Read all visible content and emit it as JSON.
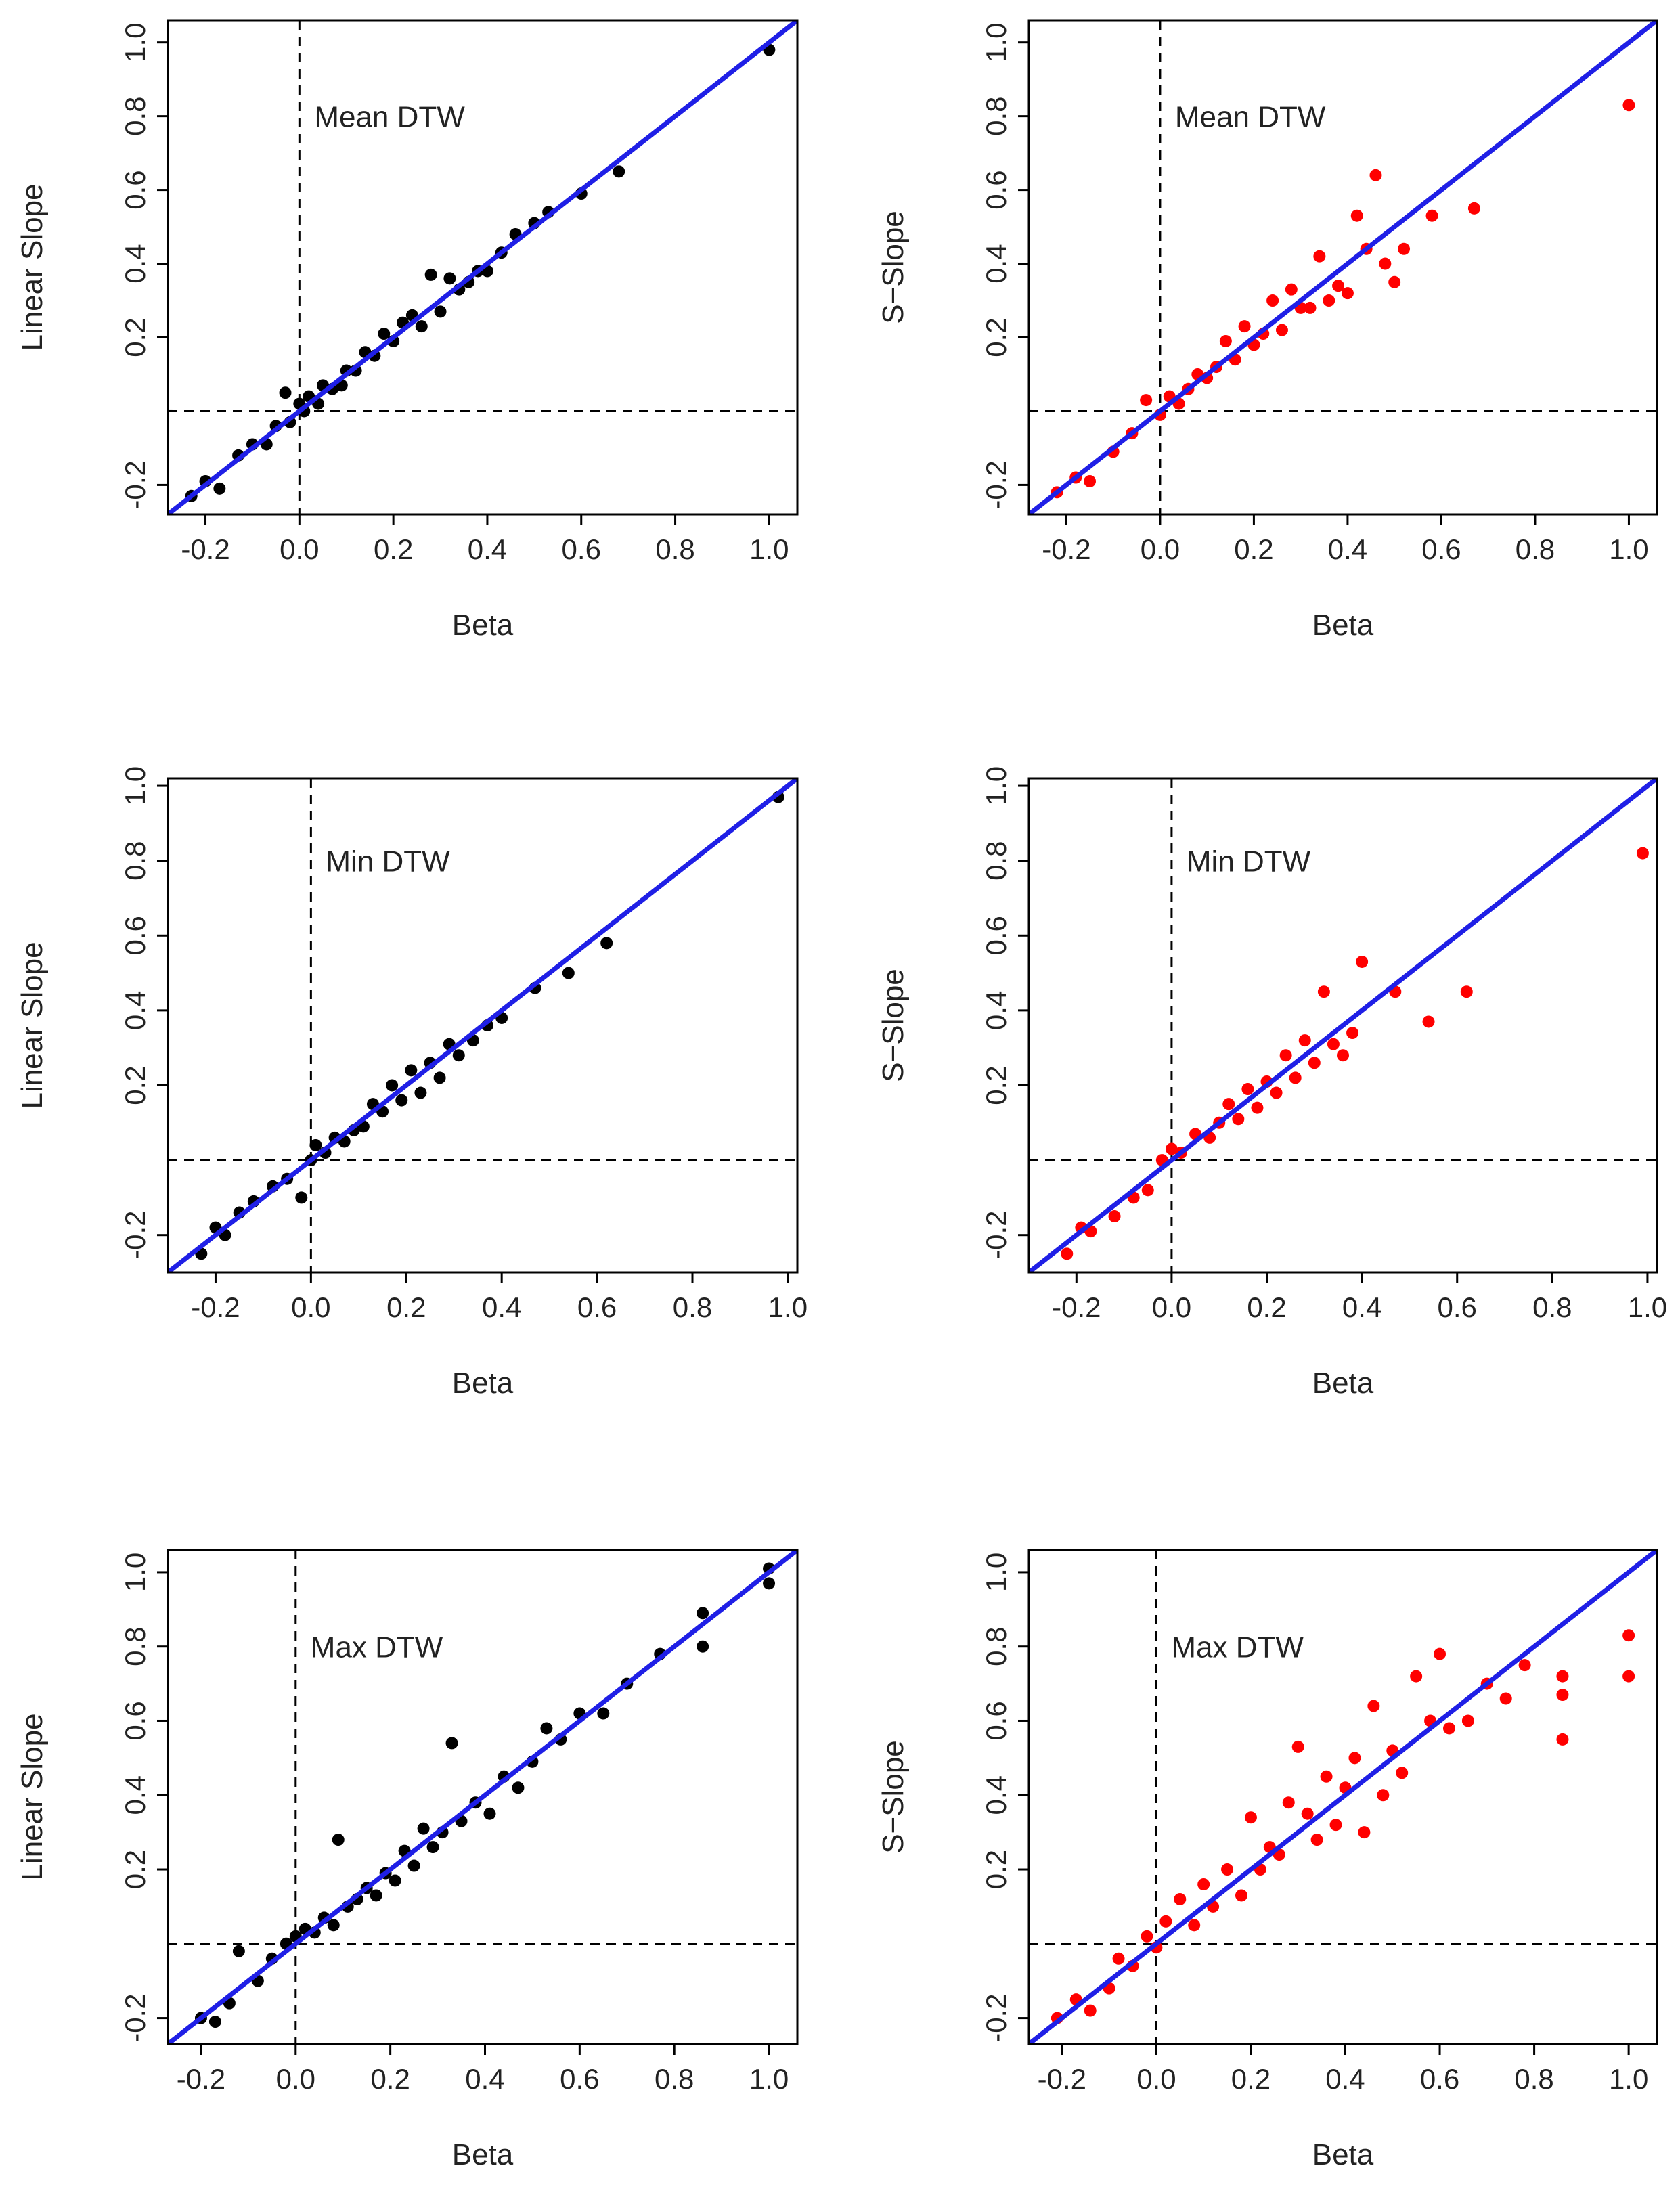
{
  "colors": {
    "identity_line": "#1f1fe6",
    "axis": "#000000",
    "reference_line": "#000000",
    "linear_points": "#000000",
    "s_slope_points": "#ff0000"
  },
  "chart_data": [
    {
      "id": "mean-linear",
      "type": "scatter",
      "annotation": "Mean DTW",
      "xlabel": "Beta",
      "ylabel": "Linear Slope",
      "xlim": [
        -0.28,
        1.06
      ],
      "ylim": [
        -0.28,
        1.06
      ],
      "xticks": [
        "-0.2",
        "0.0",
        "0.2",
        "0.4",
        "0.6",
        "0.8",
        "1.0"
      ],
      "yticks": [
        "-0.2",
        "0.2",
        "0.4",
        "0.6",
        "0.8",
        "1.0"
      ],
      "reference_lines": {
        "x": 0.0,
        "y": 0.0
      },
      "identity_line": true,
      "point_color": "#000000",
      "series": [
        {
          "name": "Linear Slope",
          "x": [
            -0.23,
            -0.2,
            -0.17,
            -0.13,
            -0.1,
            -0.07,
            -0.05,
            -0.03,
            -0.02,
            0.0,
            0.01,
            0.02,
            0.04,
            0.05,
            0.07,
            0.09,
            0.1,
            0.12,
            0.14,
            0.16,
            0.18,
            0.2,
            0.22,
            0.24,
            0.26,
            0.28,
            0.3,
            0.32,
            0.34,
            0.36,
            0.38,
            0.4,
            0.43,
            0.46,
            0.5,
            0.53,
            0.6,
            0.68,
            1.0
          ],
          "y": [
            -0.23,
            -0.19,
            -0.21,
            -0.12,
            -0.09,
            -0.09,
            -0.04,
            0.05,
            -0.03,
            0.02,
            0.0,
            0.04,
            0.02,
            0.07,
            0.06,
            0.07,
            0.11,
            0.11,
            0.16,
            0.15,
            0.21,
            0.19,
            0.24,
            0.26,
            0.23,
            0.37,
            0.27,
            0.36,
            0.33,
            0.35,
            0.38,
            0.38,
            0.43,
            0.48,
            0.51,
            0.54,
            0.59,
            0.65,
            0.98
          ]
        }
      ]
    },
    {
      "id": "mean-s",
      "type": "scatter",
      "annotation": "Mean DTW",
      "xlabel": "Beta",
      "ylabel": "S−Slope",
      "xlim": [
        -0.28,
        1.06
      ],
      "ylim": [
        -0.28,
        1.06
      ],
      "xticks": [
        "-0.2",
        "0.0",
        "0.2",
        "0.4",
        "0.6",
        "0.8",
        "1.0"
      ],
      "yticks": [
        "-0.2",
        "0.2",
        "0.4",
        "0.6",
        "0.8",
        "1.0"
      ],
      "reference_lines": {
        "x": 0.0,
        "y": 0.0
      },
      "identity_line": true,
      "point_color": "#ff0000",
      "series": [
        {
          "name": "S−Slope",
          "x": [
            -0.22,
            -0.18,
            -0.15,
            -0.1,
            -0.06,
            -0.03,
            0.0,
            0.02,
            0.04,
            0.06,
            0.08,
            0.1,
            0.12,
            0.14,
            0.16,
            0.18,
            0.2,
            0.22,
            0.24,
            0.26,
            0.28,
            0.3,
            0.32,
            0.34,
            0.36,
            0.38,
            0.4,
            0.42,
            0.44,
            0.46,
            0.48,
            0.5,
            0.52,
            0.58,
            0.67,
            1.0
          ],
          "y": [
            -0.22,
            -0.18,
            -0.19,
            -0.11,
            -0.06,
            0.03,
            -0.01,
            0.04,
            0.02,
            0.06,
            0.1,
            0.09,
            0.12,
            0.19,
            0.14,
            0.23,
            0.18,
            0.21,
            0.3,
            0.22,
            0.33,
            0.28,
            0.28,
            0.42,
            0.3,
            0.34,
            0.32,
            0.53,
            0.44,
            0.64,
            0.4,
            0.35,
            0.44,
            0.53,
            0.55,
            0.83
          ]
        }
      ]
    },
    {
      "id": "min-linear",
      "type": "scatter",
      "annotation": "Min DTW",
      "xlabel": "Beta",
      "ylabel": "Linear Slope",
      "xlim": [
        -0.3,
        1.02
      ],
      "ylim": [
        -0.3,
        1.02
      ],
      "xticks": [
        "-0.2",
        "0.0",
        "0.2",
        "0.4",
        "0.6",
        "0.8",
        "1.0"
      ],
      "yticks": [
        "-0.2",
        "0.2",
        "0.4",
        "0.6",
        "0.8",
        "1.0"
      ],
      "reference_lines": {
        "x": 0.0,
        "y": 0.0
      },
      "identity_line": true,
      "point_color": "#000000",
      "series": [
        {
          "name": "Linear Slope",
          "x": [
            -0.23,
            -0.2,
            -0.18,
            -0.15,
            -0.12,
            -0.08,
            -0.05,
            -0.02,
            0.0,
            0.01,
            0.03,
            0.05,
            0.07,
            0.09,
            0.11,
            0.13,
            0.15,
            0.17,
            0.19,
            0.21,
            0.23,
            0.25,
            0.27,
            0.29,
            0.31,
            0.34,
            0.37,
            0.4,
            0.47,
            0.54,
            0.62,
            0.98
          ],
          "y": [
            -0.25,
            -0.18,
            -0.2,
            -0.14,
            -0.11,
            -0.07,
            -0.05,
            -0.1,
            0.0,
            0.04,
            0.02,
            0.06,
            0.05,
            0.08,
            0.09,
            0.15,
            0.13,
            0.2,
            0.16,
            0.24,
            0.18,
            0.26,
            0.22,
            0.31,
            0.28,
            0.32,
            0.36,
            0.38,
            0.46,
            0.5,
            0.58,
            0.97
          ]
        }
      ]
    },
    {
      "id": "min-s",
      "type": "scatter",
      "annotation": "Min DTW",
      "xlabel": "Beta",
      "ylabel": "S−Slope",
      "xlim": [
        -0.3,
        1.02
      ],
      "ylim": [
        -0.3,
        1.02
      ],
      "xticks": [
        "-0.2",
        "0.0",
        "0.2",
        "0.4",
        "0.6",
        "0.8",
        "1.0"
      ],
      "yticks": [
        "-0.2",
        "0.2",
        "0.4",
        "0.6",
        "0.8",
        "1.0"
      ],
      "reference_lines": {
        "x": 0.0,
        "y": 0.0
      },
      "identity_line": true,
      "point_color": "#ff0000",
      "series": [
        {
          "name": "S−Slope",
          "x": [
            -0.22,
            -0.19,
            -0.17,
            -0.12,
            -0.08,
            -0.05,
            -0.02,
            0.0,
            0.02,
            0.05,
            0.08,
            0.1,
            0.12,
            0.14,
            0.16,
            0.18,
            0.2,
            0.22,
            0.24,
            0.26,
            0.28,
            0.3,
            0.32,
            0.34,
            0.36,
            0.38,
            0.4,
            0.47,
            0.54,
            0.62,
            0.99
          ],
          "y": [
            -0.25,
            -0.18,
            -0.19,
            -0.15,
            -0.1,
            -0.08,
            0.0,
            0.03,
            0.02,
            0.07,
            0.06,
            0.1,
            0.15,
            0.11,
            0.19,
            0.14,
            0.21,
            0.18,
            0.28,
            0.22,
            0.32,
            0.26,
            0.45,
            0.31,
            0.28,
            0.34,
            0.53,
            0.45,
            0.37,
            0.45,
            0.82
          ]
        }
      ]
    },
    {
      "id": "max-linear",
      "type": "scatter",
      "annotation": "Max DTW",
      "xlabel": "Beta",
      "ylabel": "Linear Slope",
      "xlim": [
        -0.27,
        1.06
      ],
      "ylim": [
        -0.27,
        1.06
      ],
      "xticks": [
        "-0.2",
        "0.0",
        "0.2",
        "0.4",
        "0.6",
        "0.8",
        "1.0"
      ],
      "yticks": [
        "-0.2",
        "0.2",
        "0.4",
        "0.6",
        "0.8",
        "1.0"
      ],
      "reference_lines": {
        "x": 0.0,
        "y": 0.0
      },
      "identity_line": true,
      "point_color": "#000000",
      "series": [
        {
          "name": "Linear Slope",
          "x": [
            -0.2,
            -0.17,
            -0.14,
            -0.12,
            -0.08,
            -0.05,
            -0.02,
            0.0,
            0.02,
            0.04,
            0.06,
            0.08,
            0.09,
            0.11,
            0.13,
            0.15,
            0.17,
            0.19,
            0.21,
            0.23,
            0.25,
            0.27,
            0.29,
            0.31,
            0.33,
            0.35,
            0.38,
            0.41,
            0.44,
            0.47,
            0.5,
            0.53,
            0.56,
            0.6,
            0.65,
            0.7,
            0.77,
            0.86,
            0.86,
            1.0,
            1.0
          ],
          "y": [
            -0.2,
            -0.21,
            -0.16,
            -0.02,
            -0.1,
            -0.04,
            0.0,
            0.02,
            0.04,
            0.03,
            0.07,
            0.05,
            0.28,
            0.1,
            0.12,
            0.15,
            0.13,
            0.19,
            0.17,
            0.25,
            0.21,
            0.31,
            0.26,
            0.3,
            0.54,
            0.33,
            0.38,
            0.35,
            0.45,
            0.42,
            0.49,
            0.58,
            0.55,
            0.62,
            0.62,
            0.7,
            0.78,
            0.8,
            0.89,
            1.01,
            0.97
          ]
        }
      ]
    },
    {
      "id": "max-s",
      "type": "scatter",
      "annotation": "Max DTW",
      "xlabel": "Beta",
      "ylabel": "S−Slope",
      "xlim": [
        -0.27,
        1.06
      ],
      "ylim": [
        -0.27,
        1.06
      ],
      "xticks": [
        "-0.2",
        "0.0",
        "0.2",
        "0.4",
        "0.6",
        "0.8",
        "1.0"
      ],
      "yticks": [
        "-0.2",
        "0.2",
        "0.4",
        "0.6",
        "0.8",
        "1.0"
      ],
      "reference_lines": {
        "x": 0.0,
        "y": 0.0
      },
      "identity_line": true,
      "point_color": "#ff0000",
      "series": [
        {
          "name": "S−Slope",
          "x": [
            -0.21,
            -0.17,
            -0.14,
            -0.1,
            -0.08,
            -0.05,
            -0.02,
            0.0,
            0.02,
            0.05,
            0.08,
            0.1,
            0.12,
            0.15,
            0.18,
            0.2,
            0.22,
            0.24,
            0.26,
            0.28,
            0.3,
            0.32,
            0.34,
            0.36,
            0.38,
            0.4,
            0.42,
            0.44,
            0.46,
            0.48,
            0.5,
            0.52,
            0.55,
            0.58,
            0.6,
            0.62,
            0.66,
            0.7,
            0.74,
            0.78,
            0.86,
            0.86,
            0.86,
            1.0,
            1.0
          ],
          "y": [
            -0.2,
            -0.15,
            -0.18,
            -0.12,
            -0.04,
            -0.06,
            0.02,
            -0.01,
            0.06,
            0.12,
            0.05,
            0.16,
            0.1,
            0.2,
            0.13,
            0.34,
            0.2,
            0.26,
            0.24,
            0.38,
            0.53,
            0.35,
            0.28,
            0.45,
            0.32,
            0.42,
            0.5,
            0.3,
            0.64,
            0.4,
            0.52,
            0.46,
            0.72,
            0.6,
            0.78,
            0.58,
            0.6,
            0.7,
            0.66,
            0.75,
            0.72,
            0.67,
            0.55,
            0.83,
            0.72
          ]
        }
      ]
    }
  ]
}
